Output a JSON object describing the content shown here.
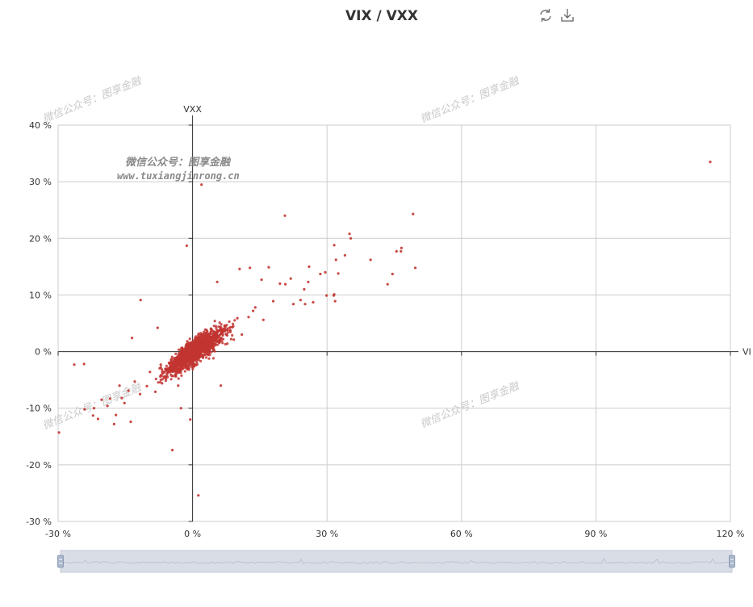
{
  "chart_data": {
    "type": "scatter",
    "title": "VIX / VXX",
    "xlabel": "VI",
    "ylabel": "VXX",
    "xlim": [
      -30,
      120
    ],
    "ylim": [
      -30,
      40
    ],
    "x_ticks": [
      -30,
      0,
      30,
      60,
      90,
      120
    ],
    "y_ticks": [
      -30,
      -20,
      -10,
      0,
      10,
      20,
      30,
      40
    ],
    "x_tick_labels": [
      "-30 %",
      "0 %",
      "30 %",
      "60 %",
      "90 %",
      "120 %"
    ],
    "y_tick_labels": [
      "-30 %",
      "-20 %",
      "-10 %",
      "0 %",
      "10 %",
      "20 %",
      "30 %",
      "40 %"
    ],
    "grid": true,
    "color": "#c23531",
    "series": [
      {
        "points": [
          [
            115.5,
            33.5
          ],
          [
            49.2,
            24.3
          ],
          [
            20.6,
            24.0
          ],
          [
            2.0,
            29.5
          ],
          [
            -1.3,
            18.7
          ],
          [
            35.0,
            20.8
          ],
          [
            35.3,
            20.0
          ],
          [
            31.6,
            18.8
          ],
          [
            32.0,
            16.2
          ],
          [
            46.6,
            18.3
          ],
          [
            45.5,
            17.7
          ],
          [
            46.5,
            17.7
          ],
          [
            49.7,
            14.8
          ],
          [
            39.7,
            16.2
          ],
          [
            34.0,
            17.0
          ],
          [
            43.5,
            11.9
          ],
          [
            44.6,
            13.7
          ],
          [
            31.5,
            9.9
          ],
          [
            29.9,
            9.9
          ],
          [
            31.8,
            8.9
          ],
          [
            31.6,
            10.1
          ],
          [
            32.5,
            13.8
          ],
          [
            29.6,
            14.0
          ],
          [
            28.5,
            13.7
          ],
          [
            26.0,
            15.0
          ],
          [
            25.8,
            12.3
          ],
          [
            24.9,
            11.0
          ],
          [
            24.1,
            9.1
          ],
          [
            22.5,
            8.4
          ],
          [
            25.1,
            8.4
          ],
          [
            26.9,
            8.7
          ],
          [
            21.9,
            12.9
          ],
          [
            20.7,
            11.9
          ],
          [
            19.5,
            12.0
          ],
          [
            18.0,
            8.9
          ],
          [
            15.4,
            12.7
          ],
          [
            17.0,
            14.9
          ],
          [
            12.8,
            14.8
          ],
          [
            10.5,
            14.6
          ],
          [
            5.5,
            12.3
          ],
          [
            -11.6,
            9.1
          ],
          [
            -13.5,
            2.4
          ],
          [
            -26.4,
            -2.3
          ],
          [
            -24.2,
            -2.2
          ],
          [
            -29.8,
            -14.3
          ],
          [
            -22.2,
            -11.3
          ],
          [
            -21.1,
            -11.9
          ],
          [
            -22.0,
            -10.0
          ],
          [
            -24.1,
            -10.2
          ],
          [
            -17.5,
            -12.8
          ],
          [
            -17.1,
            -11.2
          ],
          [
            -13.8,
            -12.4
          ],
          [
            -15.2,
            -9.1
          ],
          [
            -4.5,
            -17.4
          ],
          [
            1.3,
            -25.4
          ],
          [
            6.3,
            -6.0
          ],
          [
            -2.6,
            -10.0
          ],
          [
            -0.5,
            -12.0
          ],
          [
            -20.3,
            -8.5
          ],
          [
            -19.0,
            -9.6
          ],
          [
            -18.4,
            -8.3
          ],
          [
            -7.8,
            4.2
          ],
          [
            12.5,
            6.1
          ],
          [
            14.0,
            7.8
          ],
          [
            15.8,
            5.6
          ],
          [
            13.5,
            7.2
          ],
          [
            8.9,
            4.3
          ],
          [
            10.0,
            5.9
          ],
          [
            6.2,
            3.9
          ],
          [
            5.4,
            3.0
          ],
          [
            7.6,
            3.8
          ],
          [
            4.0,
            3.2
          ],
          [
            3.2,
            2.9
          ],
          [
            9.2,
            2.1
          ],
          [
            11.0,
            3.0
          ],
          [
            -3.2,
            -6.0
          ],
          [
            -5.6,
            -4.5
          ],
          [
            -6.8,
            -5.6
          ],
          [
            -8.3,
            -7.1
          ],
          [
            -10.2,
            -6.1
          ],
          [
            -11.7,
            -7.5
          ],
          [
            -12.9,
            -5.3
          ],
          [
            -9.5,
            -3.6
          ],
          [
            -14.3,
            -6.9
          ],
          [
            -15.8,
            -8.2
          ],
          [
            -16.3,
            -6.0
          ],
          [
            -7.1,
            -2.3
          ],
          [
            -4.3,
            -3.5
          ]
        ]
      }
    ]
  },
  "watermarks": [
    {
      "text": "微信公众号：图享金融"
    },
    {
      "text": "微信公众号：图享金融"
    },
    {
      "text": "微信公众号：图享金融"
    },
    {
      "text": "微信公众号：图享金融"
    }
  ],
  "watermark_inline": {
    "line1": "微信公众号：图享金融",
    "line2": "www.tuxiangjinrong.cn"
  },
  "toolbox": {
    "items": [
      {
        "icon": "refresh-icon",
        "label": "restore"
      },
      {
        "icon": "download-icon",
        "label": "save as image"
      }
    ]
  },
  "datazoom": {
    "start_fraction": 0,
    "end_fraction": 1
  }
}
